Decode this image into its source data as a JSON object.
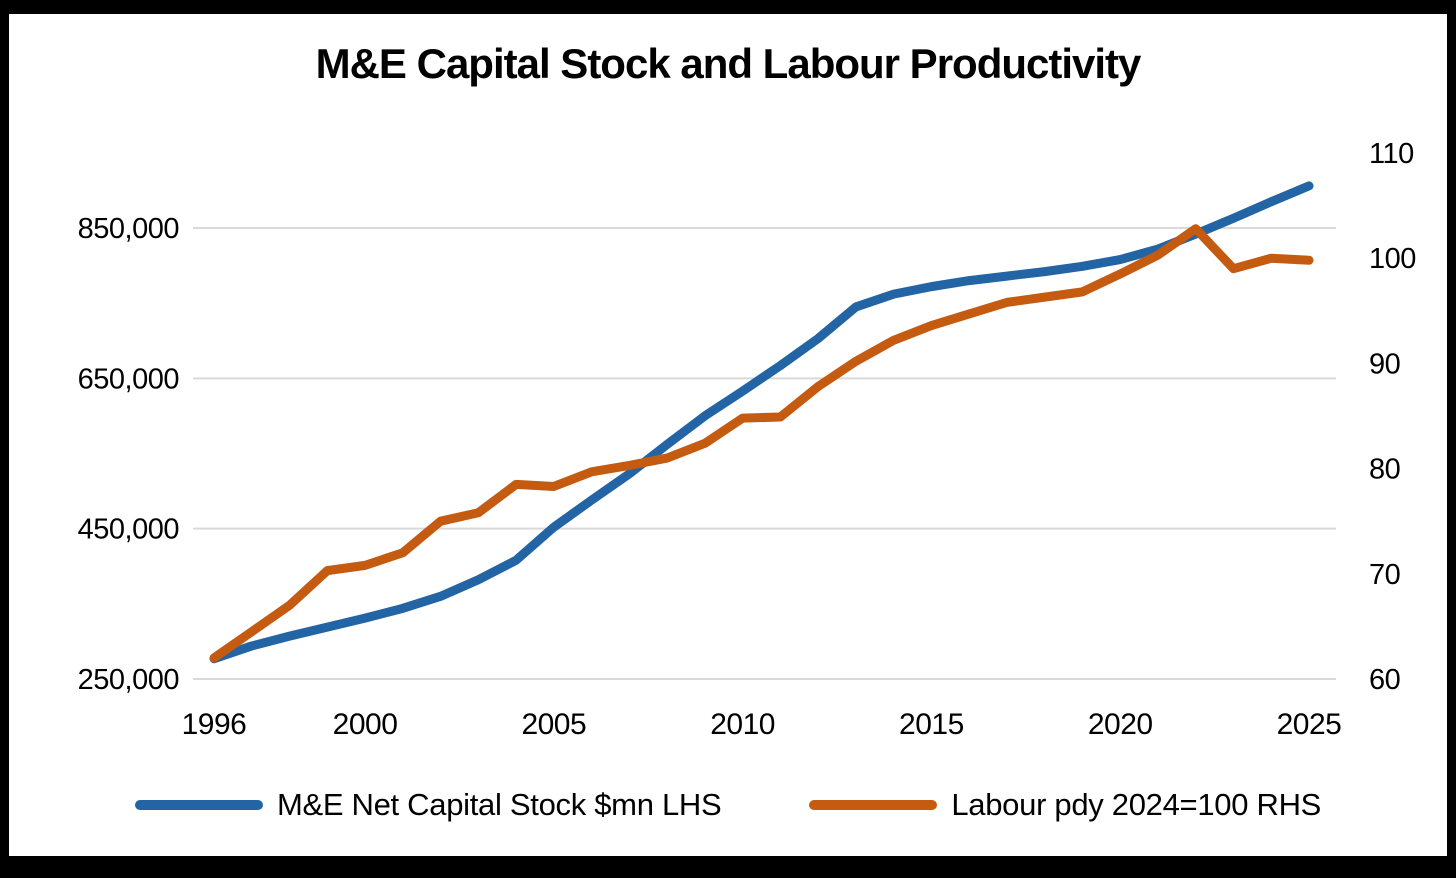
{
  "frame": {
    "border_color": "#000000",
    "canvas_color": "#ffffff"
  },
  "chart_data": {
    "type": "line",
    "title": "M&E Capital Stock and Labour Productivity",
    "grid": "horizontal",
    "grid_color": "#d9d9d9",
    "legend_position": "bottom",
    "years": [
      1996,
      1997,
      1998,
      1999,
      2000,
      2001,
      2002,
      2003,
      2004,
      2005,
      2006,
      2007,
      2008,
      2009,
      2010,
      2011,
      2012,
      2013,
      2014,
      2015,
      2016,
      2017,
      2018,
      2019,
      2020,
      2021,
      2022,
      2023,
      2024,
      2025
    ],
    "x_ticks": [
      1996,
      2000,
      2005,
      2010,
      2015,
      2020,
      2025
    ],
    "x_tick_labels": [
      "1996",
      "2000",
      "2005",
      "2010",
      "2015",
      "2020",
      "2025"
    ],
    "left_axis": {
      "ticks": [
        250000,
        450000,
        650000,
        850000
      ],
      "tick_labels": [
        "250,000",
        "450,000",
        "650,000",
        "850,000"
      ],
      "anchors": {
        "min_value": 250000,
        "max_value": 850000
      }
    },
    "right_axis": {
      "ticks": [
        60,
        70,
        80,
        90,
        100,
        110
      ],
      "tick_labels": [
        "60",
        "70",
        "80",
        "90",
        "100",
        "110"
      ],
      "anchors": {
        "min_value": 60,
        "max_value": 110
      }
    },
    "series": [
      {
        "name": "M&E Net Capital Stock $mn LHS",
        "axis": "left",
        "color": "#2264a4",
        "values": [
          277000,
          294000,
          307000,
          319000,
          331000,
          344000,
          360000,
          382000,
          408000,
          452000,
          488000,
          523000,
          562000,
          600000,
          633000,
          667000,
          703000,
          745000,
          762000,
          772000,
          780000,
          786000,
          792000,
          799000,
          808000,
          822000,
          842000,
          863000,
          885000,
          906000
        ]
      },
      {
        "name": "Labour pdy 2024=100 RHS",
        "axis": "right",
        "color": "#c55a11",
        "values": [
          62,
          64.5,
          67,
          70.3,
          70.8,
          72,
          75,
          75.8,
          78.5,
          78.3,
          79.7,
          80.3,
          81,
          82.4,
          84.8,
          84.9,
          87.8,
          90.2,
          92.2,
          93.6,
          94.7,
          95.8,
          96.3,
          96.8,
          98.5,
          100.3,
          102.8,
          99,
          100,
          99.8
        ]
      }
    ]
  }
}
